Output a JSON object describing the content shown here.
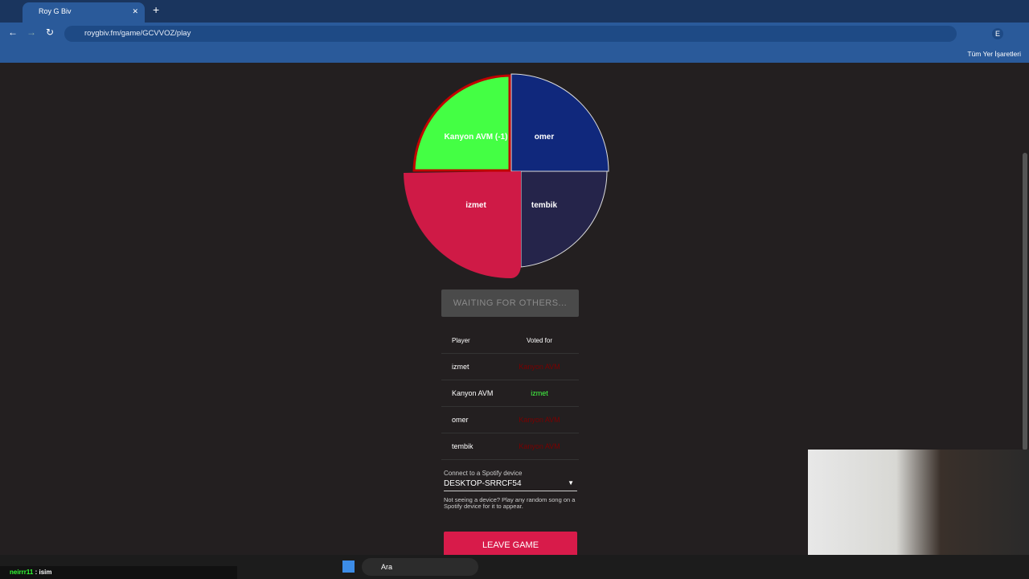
{
  "browser": {
    "tab_title": "Roy G Biv",
    "url": "roygbiv.fm/game/GCVVOZ/play",
    "bookmarks": "Tüm Yer İşaretleri",
    "profile": "E"
  },
  "wheel": {
    "segments": [
      {
        "label": "Kanyon AVM (-1)"
      },
      {
        "label": "omer"
      },
      {
        "label": "izmet"
      },
      {
        "label": "tembik"
      }
    ]
  },
  "status_button": "WAITING FOR OTHERS...",
  "votes": {
    "headers": [
      "Player",
      "Voted for"
    ],
    "rows": [
      [
        "izmet",
        "Kanyon AVM"
      ],
      [
        "Kanyon AVM",
        "izmet"
      ],
      [
        "omer",
        "Kanyon AVM"
      ],
      [
        "tembik",
        "Kanyon AVM"
      ]
    ]
  },
  "spotify": {
    "label": "Connect to a Spotify device",
    "device": "DESKTOP-SRRCF54",
    "hint": "Not seeing a device? Play any random song on a Spotify device for it to appear."
  },
  "leave_button": "LEAVE GAME",
  "taskbar": {
    "search": "Ara"
  },
  "overlay": {
    "chat_user": "neirrr11",
    "chat_message": ": isim"
  }
}
